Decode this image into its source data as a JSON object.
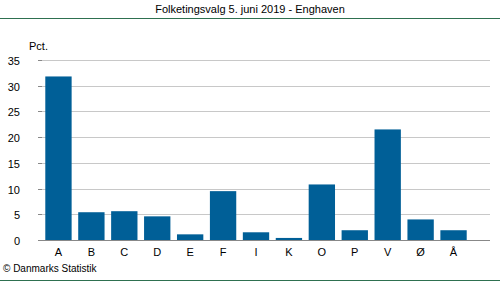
{
  "chart_data": {
    "type": "bar",
    "title": "Folketingsvalg 5. juni 2019 - Enghaven",
    "y_label": "Pct.",
    "source": "© Danmarks Statistik",
    "categories": [
      "A",
      "B",
      "C",
      "D",
      "E",
      "F",
      "I",
      "K",
      "O",
      "P",
      "V",
      "Ø",
      "Å"
    ],
    "values": [
      31.8,
      5.4,
      5.6,
      4.6,
      1.1,
      9.5,
      1.5,
      0.4,
      10.8,
      1.9,
      21.5,
      4.0,
      1.9
    ],
    "color": "#005f97",
    "ylim": [
      0,
      35
    ],
    "yticks": [
      0,
      5,
      10,
      15,
      20,
      25,
      30,
      35
    ],
    "grid": true
  }
}
